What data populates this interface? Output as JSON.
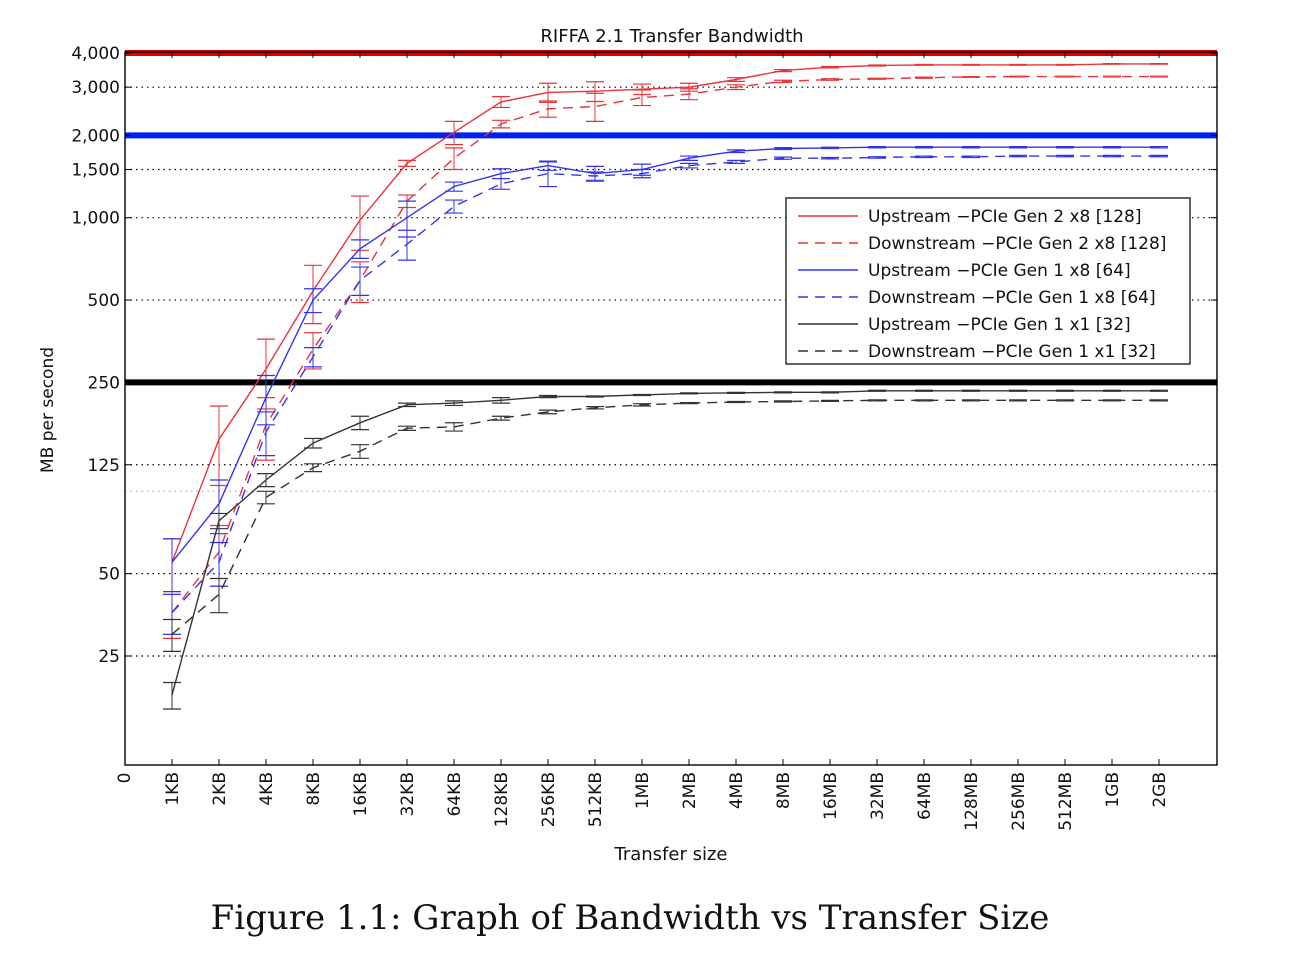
{
  "caption": "Figure 1.1: Graph of Bandwidth vs Transfer Size",
  "chart_data": {
    "type": "line",
    "title": "RIFFA 2.1 Transfer Bandwidth",
    "xlabel": "Transfer size",
    "ylabel": "MB per second",
    "y_scale": "log",
    "grid": "horizontal dotted",
    "legend_placement": "right",
    "categories": [
      "1KB",
      "2KB",
      "4KB",
      "8KB",
      "16KB",
      "32KB",
      "64KB",
      "128KB",
      "256KB",
      "512KB",
      "1MB",
      "2MB",
      "4MB",
      "8MB",
      "16MB",
      "32MB",
      "64MB",
      "128MB",
      "256MB",
      "512MB",
      "1GB",
      "2GB"
    ],
    "y_ticks": [
      {
        "value": 25,
        "label": "25"
      },
      {
        "value": 50,
        "label": "50"
      },
      {
        "value": 125,
        "label": "125"
      },
      {
        "value": 250,
        "label": "250"
      },
      {
        "value": 500,
        "label": "500"
      },
      {
        "value": 1000,
        "label": "1,000"
      },
      {
        "value": 1500,
        "label": "1,500"
      },
      {
        "value": 2000,
        "label": "2,000"
      },
      {
        "value": 3000,
        "label": "3,000"
      },
      {
        "value": 4000,
        "label": "4,000"
      }
    ],
    "y_zero_label": "0",
    "extra_gridline": 100,
    "reference_lines": [
      {
        "value": 4000,
        "color": "#dd0000"
      },
      {
        "value": 2000,
        "color": "#0022ee"
      },
      {
        "value": 250,
        "color": "#000000"
      }
    ],
    "series": [
      {
        "name": "Upstream −PCIe Gen 2 x8 [128]",
        "color": "#e8343a",
        "dash": "solid",
        "values": [
          55,
          155,
          280,
          540,
          980,
          1580,
          2050,
          2650,
          2870,
          2900,
          2950,
          3000,
          3200,
          3450,
          3550,
          3600,
          3620,
          3620,
          3620,
          3620,
          3650,
          3650
        ],
        "err": [
          12,
          50,
          80,
          130,
          220,
          40,
          200,
          120,
          230,
          240,
          130,
          100,
          50,
          30,
          20,
          15,
          10,
          10,
          10,
          10,
          10,
          10
        ]
      },
      {
        "name": "Downstream −PCIe Gen 2 x8 [128]",
        "color": "#e8343a",
        "dash": "dashed",
        "values": [
          36,
          60,
          175,
          330,
          590,
          1150,
          1650,
          2200,
          2500,
          2550,
          2750,
          2830,
          3000,
          3150,
          3200,
          3220,
          3250,
          3270,
          3280,
          3280,
          3280,
          3280
        ],
        "err": [
          7,
          15,
          45,
          50,
          100,
          60,
          150,
          70,
          170,
          300,
          180,
          130,
          60,
          30,
          20,
          15,
          15,
          10,
          10,
          10,
          10,
          10
        ]
      },
      {
        "name": "Upstream −PCIe Gen 1 x8 [64]",
        "color": "#3333ee",
        "dash": "solid",
        "values": [
          55,
          90,
          220,
          500,
          770,
          1000,
          1300,
          1450,
          1550,
          1450,
          1500,
          1650,
          1750,
          1790,
          1800,
          1810,
          1810,
          1810,
          1810,
          1810,
          1810,
          1810
        ],
        "err": [
          12,
          20,
          45,
          50,
          60,
          150,
          50,
          60,
          60,
          90,
          70,
          30,
          20,
          15,
          10,
          10,
          10,
          10,
          10,
          10,
          10,
          10
        ]
      },
      {
        "name": "Downstream −PCIe Gen 1 x8 [64]",
        "color": "#3333ee",
        "dash": "dashed",
        "values": [
          36,
          55,
          165,
          310,
          590,
          800,
          1100,
          1330,
          1450,
          1420,
          1450,
          1550,
          1600,
          1650,
          1650,
          1660,
          1670,
          1670,
          1680,
          1680,
          1680,
          1680
        ],
        "err": [
          6,
          10,
          30,
          25,
          70,
          100,
          60,
          60,
          150,
          50,
          50,
          30,
          20,
          15,
          10,
          10,
          10,
          10,
          10,
          10,
          10,
          10
        ]
      },
      {
        "name": "Upstream −PCIe Gen 1 x1 [32]",
        "color": "#333333",
        "dash": "solid",
        "values": [
          18,
          78,
          110,
          150,
          178,
          207,
          210,
          215,
          222,
          222,
          225,
          228,
          229,
          230,
          230,
          233,
          233,
          233,
          233,
          233,
          233,
          233
        ],
        "err": [
          2,
          5,
          6,
          6,
          10,
          3,
          4,
          5,
          2,
          1,
          1,
          1,
          1,
          1,
          1,
          1,
          1,
          1,
          1,
          1,
          1,
          1
        ]
      },
      {
        "name": "Downstream −PCIe Gen 1 x1 [32]",
        "color": "#333333",
        "dash": "dashed",
        "values": [
          30,
          42,
          95,
          122,
          140,
          170,
          172,
          185,
          195,
          202,
          207,
          210,
          212,
          213,
          214,
          215,
          215,
          215,
          215,
          215,
          215,
          215
        ],
        "err": [
          4,
          6,
          5,
          4,
          8,
          3,
          6,
          3,
          3,
          2,
          2,
          1,
          1,
          1,
          1,
          1,
          1,
          1,
          1,
          1,
          1,
          1
        ]
      }
    ]
  }
}
